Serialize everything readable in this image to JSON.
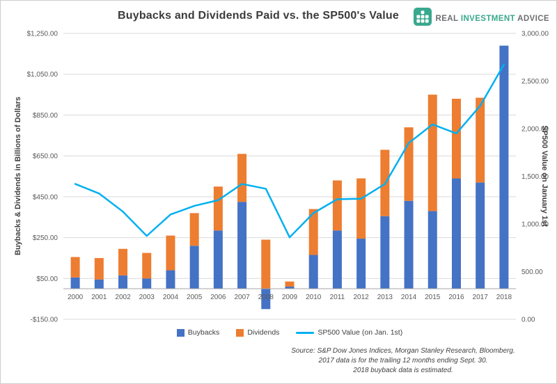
{
  "header": {
    "logo": {
      "word1": "REAL",
      "word2": "INVESTMENT",
      "word3": "ADVICE",
      "teal": "#38a88e",
      "gray": "#6d6e71"
    }
  },
  "chart_data": {
    "type": "combo",
    "bar_mode": "stacked",
    "title": "Buybacks and Dividends Paid vs. the SP500's Value",
    "categories": [
      "2000",
      "2001",
      "2002",
      "2003",
      "2004",
      "2005",
      "2006",
      "2007",
      "2008",
      "2009",
      "2010",
      "2011",
      "2012",
      "2013",
      "2014",
      "2015",
      "2016",
      "2017",
      "2018"
    ],
    "series": [
      {
        "name": "Buybacks",
        "type": "bar",
        "axis": "left",
        "color": "#4472C4",
        "values": [
          55,
          45,
          65,
          50,
          90,
          210,
          285,
          425,
          -100,
          10,
          165,
          285,
          245,
          355,
          430,
          380,
          540,
          520,
          1190
        ]
      },
      {
        "name": "Dividends",
        "type": "bar",
        "axis": "left",
        "color": "#ED7D31",
        "values": [
          100,
          105,
          130,
          125,
          170,
          160,
          215,
          235,
          240,
          25,
          225,
          245,
          295,
          325,
          360,
          570,
          390,
          415,
          0
        ]
      },
      {
        "name": "SP500 Value (on Jan. 1st)",
        "type": "line",
        "axis": "right",
        "color": "#00B0F0",
        "values": [
          1420,
          1320,
          1130,
          875,
          1100,
          1190,
          1250,
          1420,
          1370,
          860,
          1115,
          1260,
          1265,
          1420,
          1850,
          2045,
          1950,
          2240,
          2675
        ]
      }
    ],
    "left_axis": {
      "title": "Buybacks & Dividends in Billions of Dollars",
      "min": -150,
      "max": 1250,
      "tick_values": [
        1250,
        1050,
        850,
        650,
        450,
        250,
        50,
        -150
      ],
      "tick_labels": [
        "$1,250.00",
        "$1,050.00",
        "$850.00",
        "$650.00",
        "$450.00",
        "$250.00",
        "$50.00",
        "-$150.00"
      ]
    },
    "right_axis": {
      "title": "SP500 Value on January 1st",
      "min": 0,
      "max": 3000,
      "tick_values": [
        3000,
        2500,
        2000,
        1500,
        1000,
        500,
        0
      ],
      "tick_labels": [
        "3,000.00",
        "2,500.00",
        "2,000.00",
        "1,500.00",
        "1,000.00",
        "500.00",
        "0.00"
      ]
    },
    "grid": true,
    "legend_position": "bottom",
    "colors": {
      "gridline": "#D9D9D9",
      "axis_line": "#A6A6A6",
      "tick_text": "#595959"
    }
  },
  "source": {
    "line1": "Source: S&P Dow Jones Indices, Morgan Stanley Research, Bloomberg.",
    "line2": "2017 data is for the trailing 12 months ending Sept. 30.",
    "line3": "2018 buyback data is estimated."
  }
}
